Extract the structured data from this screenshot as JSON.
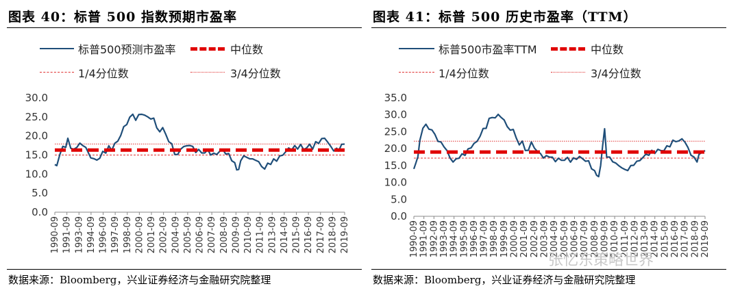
{
  "watermark": "张忆东策略世界",
  "chart_data": [
    {
      "type": "line",
      "title": "图表 40：标普 500 指数预期市盈率",
      "source": "数据来源：Bloomberg，兴业证券经济与金融研究院整理",
      "legend": [
        "标普500预测市盈率",
        "中位数",
        "1/4分位数",
        "3/4分位数"
      ],
      "ylim": [
        0,
        30
      ],
      "yticks": [
        "0.0",
        "5.0",
        "10.0",
        "15.0",
        "20.0",
        "25.0",
        "30.0"
      ],
      "xticks": [
        "1990-09",
        "1991-09",
        "1993-09",
        "1994-09",
        "1996-09",
        "1997-09",
        "1998-09",
        "2000-09",
        "2001-09",
        "2002-09",
        "2004-09",
        "2005-09",
        "2006-09",
        "2007-09",
        "2008-09",
        "2009-09",
        "2010-09",
        "2011-09",
        "2013-09",
        "2014-09",
        "2015-09",
        "2016-09",
        "2017-09",
        "2018-09",
        "2019-09"
      ],
      "median": 16.3,
      "q1": 15.0,
      "q3": 17.9,
      "series": [
        {
          "name": "标普500预测市盈率",
          "x": [
            1990.7,
            1990.9,
            1991.2,
            1991.5,
            1991.8,
            1992.0,
            1992.3,
            1992.6,
            1992.9,
            1993.2,
            1993.5,
            1993.8,
            1994.0,
            1994.3,
            1994.6,
            1994.9,
            1995.2,
            1995.5,
            1995.8,
            1996.1,
            1996.4,
            1996.7,
            1997.0,
            1997.3,
            1997.6,
            1997.9,
            1998.2,
            1998.5,
            1998.8,
            1999.1,
            1999.4,
            1999.7,
            2000.0,
            2000.3,
            2000.6,
            2000.9,
            2001.2,
            2001.5,
            2001.8,
            2002.1,
            2002.4,
            2002.7,
            2003.0,
            2003.3,
            2003.6,
            2003.9,
            2004.2,
            2004.5,
            2004.8,
            2005.1,
            2005.4,
            2005.7,
            2006.0,
            2006.3,
            2006.6,
            2006.9,
            2007.2,
            2007.5,
            2007.8,
            2008.1,
            2008.4,
            2008.7,
            2008.9,
            2009.1,
            2009.3,
            2009.6,
            2009.9,
            2010.2,
            2010.5,
            2010.8,
            2011.1,
            2011.4,
            2011.7,
            2012.0,
            2012.3,
            2012.6,
            2012.9,
            2013.2,
            2013.5,
            2013.8,
            2014.1,
            2014.4,
            2014.7,
            2015.0,
            2015.3,
            2015.6,
            2015.9,
            2016.2,
            2016.5,
            2016.8,
            2017.1,
            2017.4,
            2017.7,
            2018.0,
            2018.3,
            2018.6,
            2018.9,
            2019.1,
            2019.4,
            2019.7
          ],
          "y": [
            12.5,
            12.0,
            15.5,
            16.8,
            17.5,
            19.0,
            17.0,
            16.5,
            16.8,
            18.5,
            17.0,
            17.5,
            15.5,
            14.5,
            14.0,
            13.5,
            14.5,
            15.5,
            16.0,
            17.0,
            16.5,
            18.0,
            18.5,
            20.5,
            22.0,
            23.5,
            24.5,
            26.0,
            24.0,
            25.5,
            26.0,
            25.0,
            25.5,
            24.0,
            25.0,
            22.0,
            21.0,
            22.5,
            20.0,
            19.0,
            17.5,
            15.5,
            15.0,
            16.5,
            17.5,
            17.0,
            18.0,
            16.8,
            16.0,
            16.3,
            15.5,
            15.8,
            16.0,
            15.5,
            15.0,
            15.5,
            15.8,
            16.5,
            15.5,
            15.0,
            14.0,
            12.5,
            11.5,
            11.0,
            13.5,
            15.0,
            14.0,
            14.5,
            13.5,
            14.0,
            13.0,
            12.0,
            11.5,
            12.5,
            13.0,
            13.5,
            13.8,
            14.5,
            15.0,
            16.0,
            16.5,
            16.8,
            17.0,
            17.0,
            17.5,
            16.5,
            17.0,
            17.5,
            17.0,
            18.0,
            18.5,
            19.0,
            19.5,
            18.5,
            17.0,
            16.5,
            16.3,
            16.5,
            17.5,
            18.0
          ]
        }
      ]
    },
    {
      "type": "line",
      "title": "图表 41：标普 500 历史市盈率（TTM）",
      "source": "数据来源：Bloomberg，兴业证券经济与金融研究院整理",
      "legend": [
        "标普500市盈率TTM",
        "中位数",
        "1/4分位数",
        "3/4分位数"
      ],
      "ylim": [
        0,
        35
      ],
      "yticks": [
        "0.0",
        "5.0",
        "10.0",
        "15.0",
        "20.0",
        "25.0",
        "30.0",
        "35.0"
      ],
      "xticks": [
        "1990-09",
        "1991-09",
        "1992-09",
        "1993-09",
        "1994-09",
        "1995-09",
        "1996-09",
        "1997-09",
        "1998-09",
        "1999-09",
        "2000-09",
        "2001-09",
        "2002-09",
        "2003-09",
        "2004-09",
        "2005-09",
        "2006-09",
        "2007-09",
        "2008-09",
        "2009-09",
        "2010-09",
        "2011-09",
        "2012-09",
        "2013-09",
        "2014-09",
        "2015-09",
        "2016-09",
        "2017-09",
        "2018-09",
        "2019-09"
      ],
      "median": 19.0,
      "q1": 17.2,
      "q3": 22.2,
      "series": [
        {
          "name": "标普500市盈率TTM",
          "x": [
            1990.7,
            1990.9,
            1991.1,
            1991.3,
            1991.6,
            1991.9,
            1992.2,
            1992.5,
            1992.8,
            1993.1,
            1993.4,
            1993.7,
            1994.0,
            1994.3,
            1994.6,
            1994.9,
            1995.2,
            1995.5,
            1995.8,
            1996.1,
            1996.4,
            1996.7,
            1997.0,
            1997.3,
            1997.6,
            1997.9,
            1998.2,
            1998.5,
            1998.8,
            1999.1,
            1999.4,
            1999.7,
            2000.0,
            2000.3,
            2000.6,
            2000.9,
            2001.2,
            2001.5,
            2001.8,
            2002.1,
            2002.4,
            2002.7,
            2003.0,
            2003.3,
            2003.6,
            2003.9,
            2004.2,
            2004.5,
            2004.8,
            2005.1,
            2005.4,
            2005.7,
            2006.0,
            2006.3,
            2006.6,
            2006.9,
            2007.2,
            2007.5,
            2007.8,
            2008.1,
            2008.4,
            2008.7,
            2008.9,
            2009.1,
            2009.3,
            2009.5,
            2009.7,
            2009.9,
            2010.2,
            2010.5,
            2010.8,
            2011.1,
            2011.4,
            2011.7,
            2012.0,
            2012.3,
            2012.6,
            2012.9,
            2013.2,
            2013.5,
            2013.8,
            2014.1,
            2014.4,
            2014.7,
            2015.0,
            2015.3,
            2015.6,
            2015.9,
            2016.2,
            2016.5,
            2016.8,
            2017.1,
            2017.4,
            2017.7,
            2018.0,
            2018.3,
            2018.6,
            2018.9,
            2019.1,
            2019.4,
            2019.7
          ],
          "y": [
            14.0,
            15.5,
            18.0,
            22.0,
            26.5,
            26.8,
            26.0,
            25.5,
            24.0,
            22.5,
            21.5,
            21.0,
            19.0,
            17.5,
            16.0,
            16.8,
            17.5,
            18.0,
            18.5,
            19.5,
            20.5,
            21.5,
            22.0,
            24.0,
            25.5,
            26.5,
            28.5,
            29.5,
            29.0,
            30.0,
            29.5,
            28.0,
            27.0,
            25.0,
            26.0,
            23.0,
            21.0,
            22.5,
            19.0,
            20.0,
            21.5,
            20.5,
            19.0,
            18.5,
            17.5,
            17.5,
            18.0,
            17.0,
            16.5,
            17.0,
            16.5,
            16.8,
            17.0,
            16.5,
            16.8,
            17.2,
            17.5,
            17.0,
            16.5,
            16.0,
            14.5,
            13.0,
            12.5,
            11.5,
            15.0,
            21.0,
            25.5,
            18.0,
            17.0,
            16.5,
            15.5,
            15.0,
            14.5,
            13.5,
            14.0,
            14.5,
            15.5,
            16.0,
            16.5,
            17.5,
            18.0,
            18.5,
            19.0,
            19.0,
            19.5,
            19.5,
            19.5,
            20.5,
            21.0,
            22.0,
            22.5,
            22.0,
            23.0,
            22.0,
            20.0,
            18.5,
            17.0,
            16.5,
            18.0,
            19.0,
            19.5
          ]
        }
      ]
    }
  ]
}
